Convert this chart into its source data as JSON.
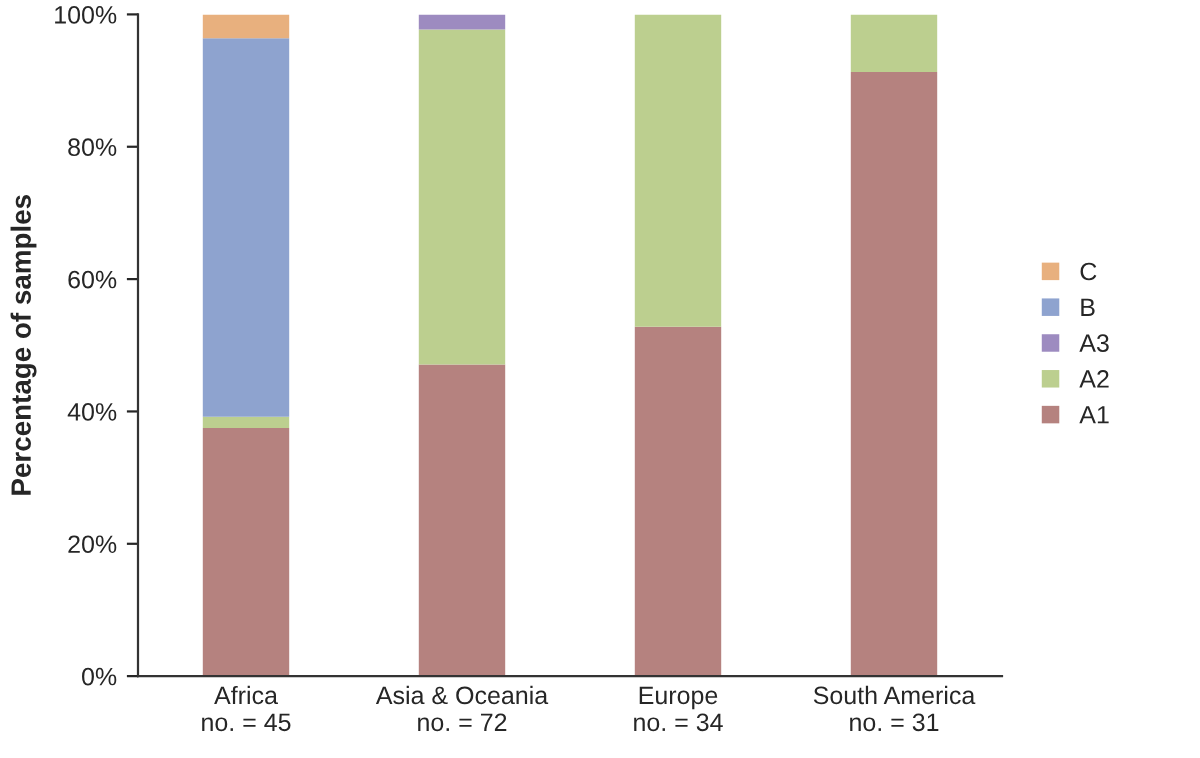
{
  "chart_data": {
    "type": "bar",
    "stacked": true,
    "ylabel": "Percentage of samples",
    "categories": [
      "Africa\nno. = 45",
      "Asia & Oceania\nno. = 72",
      "Europe\nno. = 34",
      "South America\nno. = 31"
    ],
    "series": [
      {
        "name": "A1",
        "color": "#b5827f",
        "values": [
          37.5,
          47.1,
          52.8,
          91.3
        ]
      },
      {
        "name": "A2",
        "color": "#bccf8f",
        "values": [
          1.7,
          50.6,
          47.2,
          8.7
        ]
      },
      {
        "name": "A3",
        "color": "#9d8bc0",
        "values": [
          null,
          2.3,
          null,
          null
        ]
      },
      {
        "name": "B",
        "color": "#8ea3cf",
        "values": [
          57.2,
          null,
          null,
          null
        ]
      },
      {
        "name": "C",
        "color": "#e8b07e",
        "values": [
          3.6,
          null,
          null,
          null
        ]
      }
    ],
    "ylim": [
      0,
      100
    ],
    "yticks": [
      {
        "value": 0,
        "label": "0%"
      },
      {
        "value": 20,
        "label": "20%"
      },
      {
        "value": 40,
        "label": "40%"
      },
      {
        "value": 60,
        "label": "60%"
      },
      {
        "value": 80,
        "label": "80%"
      },
      {
        "value": 100,
        "label": "100%"
      }
    ],
    "grid": false,
    "legend": "right"
  }
}
